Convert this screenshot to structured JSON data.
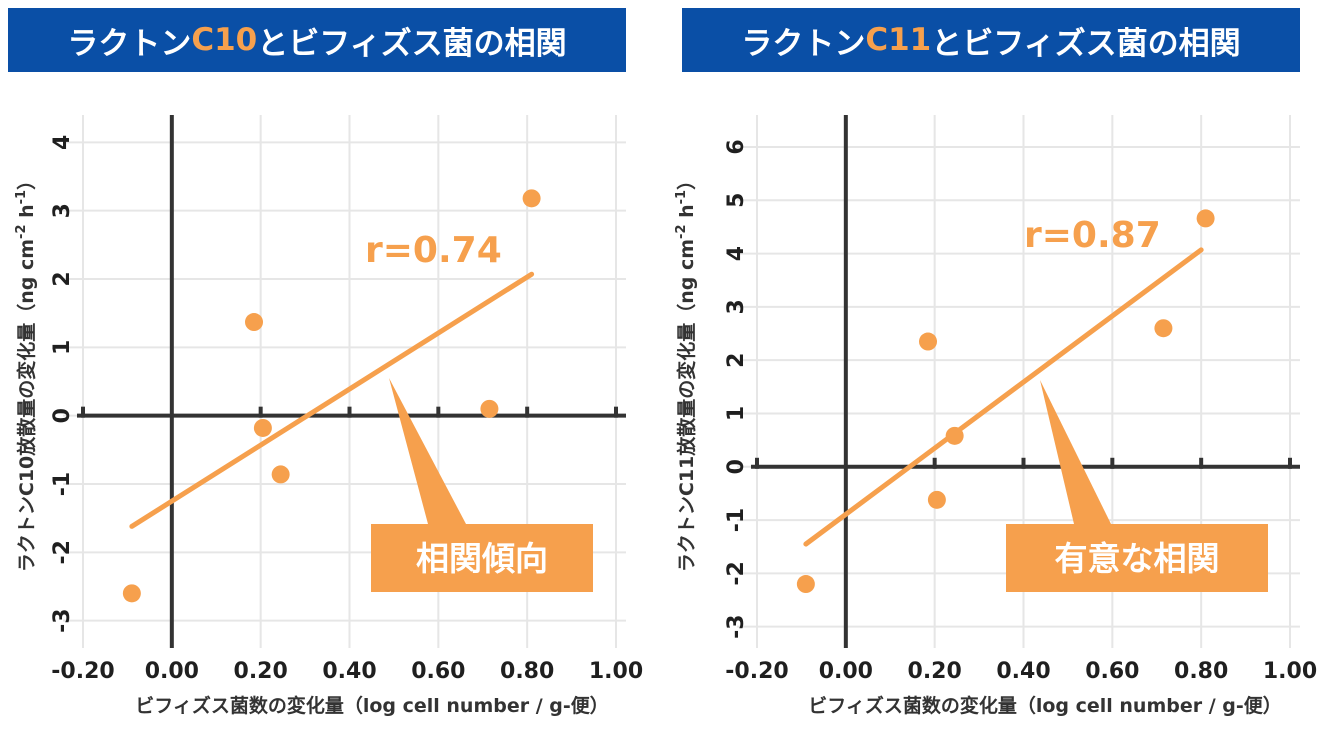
{
  "chart_data": [
    {
      "type": "scatter",
      "title_prefix": "ラクトン",
      "title_highlight": "C10",
      "title_suffix": "とビフィズス菌の相関",
      "xlabel": "ビフィズス菌数の変化量（log cell number / g-便）",
      "ylabel": "ラクトンC10放散量の変化量（ng cm",
      "ylabel_sup1": "-2",
      "ylabel_mid": " h",
      "ylabel_sup2": "-1",
      "ylabel_end": "）",
      "xlim": [
        -0.2,
        1.0
      ],
      "ylim": [
        -3.4,
        4.4
      ],
      "xticks": [
        -0.2,
        0.0,
        0.2,
        0.4,
        0.6,
        0.8,
        1.0
      ],
      "xtick_labels": [
        "-0.20",
        "0.00",
        "0.20",
        "0.40",
        "0.60",
        "0.80",
        "1.00"
      ],
      "yticks": [
        -3,
        -2,
        -1,
        0,
        1,
        2,
        3,
        4
      ],
      "ytick_labels": [
        "-3",
        "-2",
        "-1",
        "0",
        "1",
        "2",
        "3",
        "4"
      ],
      "grid": true,
      "points": [
        {
          "x": -0.09,
          "y": -2.6
        },
        {
          "x": 0.185,
          "y": 1.37
        },
        {
          "x": 0.205,
          "y": -0.18
        },
        {
          "x": 0.245,
          "y": -0.86
        },
        {
          "x": 0.715,
          "y": 0.1
        },
        {
          "x": 0.81,
          "y": 3.18
        }
      ],
      "fit_line": {
        "x1": -0.09,
        "y1": -1.62,
        "x2": 0.81,
        "y2": 2.07
      },
      "r_label": "r=0.74",
      "callout_label": "相関傾向",
      "colors": {
        "point": "#f6a04d",
        "line": "#f6a04d",
        "callout": "#f6a04d",
        "title_bg": "#0a4fa6",
        "axis": "#333333",
        "grid": "#e6e6e6"
      }
    },
    {
      "type": "scatter",
      "title_prefix": "ラクトン",
      "title_highlight": "C11",
      "title_suffix": "とビフィズス菌の相関",
      "xlabel": "ビフィズス菌数の変化量（log cell number / g-便）",
      "ylabel": "ラクトンC11放散量の変化量（ng cm",
      "ylabel_sup1": "-2",
      "ylabel_mid": " h",
      "ylabel_sup2": "-1",
      "ylabel_end": "）",
      "xlim": [
        -0.2,
        1.0
      ],
      "ylim": [
        -3.4,
        6.6
      ],
      "xticks": [
        -0.2,
        0.0,
        0.2,
        0.4,
        0.6,
        0.8,
        1.0
      ],
      "xtick_labels": [
        "-0.20",
        "0.00",
        "0.20",
        "0.40",
        "0.60",
        "0.80",
        "1.00"
      ],
      "yticks": [
        -3,
        -2,
        -1,
        0,
        1,
        2,
        3,
        4,
        5,
        6
      ],
      "ytick_labels": [
        "-3",
        "-2",
        "-1",
        "0",
        "1",
        "2",
        "3",
        "4",
        "5",
        "6"
      ],
      "grid": true,
      "points": [
        {
          "x": -0.09,
          "y": -2.2
        },
        {
          "x": 0.185,
          "y": 2.35
        },
        {
          "x": 0.205,
          "y": -0.62
        },
        {
          "x": 0.245,
          "y": 0.58
        },
        {
          "x": 0.715,
          "y": 2.6
        },
        {
          "x": 0.81,
          "y": 4.66
        }
      ],
      "fit_line": {
        "x1": -0.09,
        "y1": -1.45,
        "x2": 0.8,
        "y2": 4.07
      },
      "r_label": "r=0.87",
      "callout_label": "有意な相関",
      "colors": {
        "point": "#f6a04d",
        "line": "#f6a04d",
        "callout": "#f6a04d",
        "title_bg": "#0a4fa6",
        "axis": "#333333",
        "grid": "#e6e6e6"
      }
    }
  ]
}
